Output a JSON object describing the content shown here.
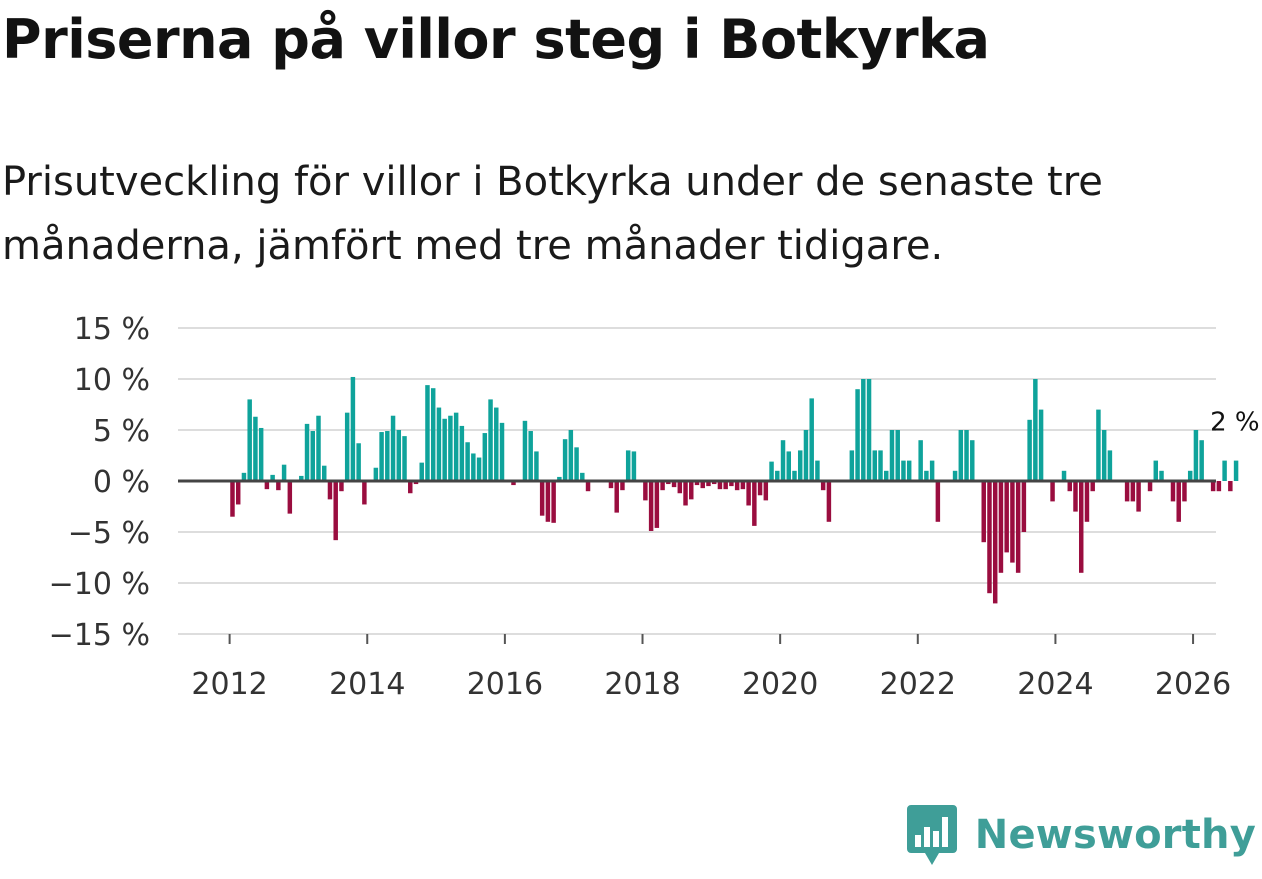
{
  "header": {
    "title": "Priserna på villor steg i Botkyrka",
    "subtitle": "Prisutveckling för villor i Botkyrka under de senaste tre månaderna, jämfört med tre månader tidigare."
  },
  "brand": {
    "name": "Newsworthy",
    "icon": "newsworthy-logo-icon",
    "color": "#3f9e98"
  },
  "colors": {
    "positive": "#0fa39b",
    "negative": "#9a0d3f",
    "grid": "#dddddd",
    "zero_line": "#444444"
  },
  "chart_data": {
    "type": "bar",
    "title": "",
    "xlabel": "",
    "ylabel": "",
    "ylim": [
      -15,
      15
    ],
    "y_ticks": [
      15,
      10,
      5,
      0,
      -5,
      -10,
      -15
    ],
    "y_tick_labels": [
      "15 %",
      "10 %",
      "5 %",
      "0 %",
      "−5 %",
      "−10 %",
      "−15 %"
    ],
    "x_range": [
      "2011-04",
      "2026-05"
    ],
    "x_ticks": [
      "2012",
      "2014",
      "2016",
      "2018",
      "2020",
      "2022",
      "2024",
      "2026"
    ],
    "grid": true,
    "legend": "none",
    "last_value_label": "2 %",
    "series": [
      {
        "start": "2012-01",
        "frequency": "monthly",
        "values": [
          -3.5,
          -2.3,
          0.8,
          8.0,
          6.3,
          5.2,
          -0.8,
          0.6,
          -0.9,
          1.6,
          -3.2,
          0.0,
          0.5,
          5.6,
          4.9,
          6.4,
          1.5,
          -1.8,
          -5.8,
          -1.0,
          6.7,
          10.2,
          3.7,
          -2.3,
          0.0,
          1.3,
          4.8,
          4.9,
          6.4,
          5.0,
          4.4,
          -1.2,
          -0.3,
          1.8,
          9.4,
          9.1,
          7.2,
          6.1,
          6.4,
          6.7,
          5.4,
          3.8,
          2.7,
          2.3,
          4.7,
          8.0,
          7.2,
          5.7,
          0.0,
          -0.4,
          0.0,
          5.9,
          4.9,
          2.9,
          -3.4,
          -4.0,
          -4.1,
          0.4,
          4.1,
          5.0,
          3.3,
          0.8,
          -1.0,
          0.0,
          0.0,
          0.0,
          -0.7,
          -3.1,
          -0.9,
          3.0,
          2.9,
          0.0,
          -1.9,
          -4.9,
          -4.6,
          -0.9,
          -0.3,
          -0.6,
          -1.2,
          -2.4,
          -1.8,
          -0.4,
          -0.7,
          -0.5,
          -0.3,
          -0.8,
          -0.8,
          -0.5,
          -0.9,
          -0.8,
          -2.4,
          -4.4,
          -1.4,
          -1.9,
          1.9,
          1.0,
          4.0,
          2.9,
          1.0,
          3.0,
          5.0,
          8.1,
          2.0,
          -0.9,
          -4.0,
          0.0,
          0.0,
          0.0,
          3.0,
          9.0,
          10.0,
          10.0,
          3.0,
          3.0,
          1.0,
          5.0,
          5.0,
          2.0,
          2.0,
          0.0,
          4.0,
          1.0,
          2.0,
          -4.0,
          0.0,
          0.0,
          1.0,
          5.0,
          5.0,
          4.0,
          0.0,
          -6.0,
          -11.0,
          -12.0,
          -9.0,
          -7.0,
          -8.0,
          -9.0,
          -5.0,
          6.0,
          10.0,
          7.0,
          0.0,
          -2.0,
          0.0,
          1.0,
          -1.0,
          -3.0,
          -9.0,
          -4.0,
          -1.0,
          7.0,
          5.0,
          3.0,
          0.0,
          0.0,
          -2.0,
          -2.0,
          -3.0,
          0.0,
          -1.0,
          2.0,
          1.0,
          0.0,
          -2.0,
          -4.0,
          -2.0,
          1.0,
          5.0,
          4.0,
          0.0,
          -1.0,
          -1.0,
          2.0,
          -1.0,
          2.0
        ]
      }
    ]
  }
}
